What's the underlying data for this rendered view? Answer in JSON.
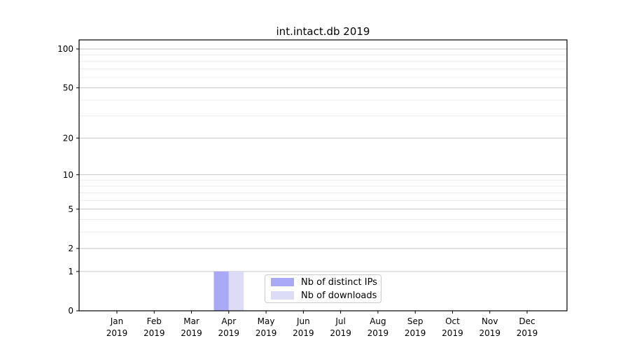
{
  "chart_data": {
    "type": "bar",
    "title": "int.intact.db 2019",
    "categories": [
      "Jan 2019",
      "Feb 2019",
      "Mar 2019",
      "Apr 2019",
      "May 2019",
      "Jun 2019",
      "Jul 2019",
      "Aug 2019",
      "Sep 2019",
      "Oct 2019",
      "Nov 2019",
      "Dec 2019"
    ],
    "series": [
      {
        "name": "Nb of distinct IPs",
        "color": "#a9a9f7",
        "values": [
          0,
          0,
          0,
          1,
          0,
          0,
          0,
          0,
          0,
          0,
          0,
          0
        ]
      },
      {
        "name": "Nb of downloads",
        "color": "#dcdcf7",
        "values": [
          0,
          0,
          0,
          1,
          0,
          0,
          0,
          0,
          0,
          0,
          0,
          0
        ]
      }
    ],
    "xlabel": "",
    "ylabel": "",
    "yscale": "log1p",
    "yticks": [
      0,
      1,
      2,
      5,
      10,
      20,
      50,
      100
    ],
    "y_minor_subs": [
      3,
      4,
      6,
      7,
      8,
      9
    ],
    "ylim": [
      0,
      117.5
    ],
    "grid": "horizontal major and minor gridlines",
    "legend_position": "lower center"
  }
}
